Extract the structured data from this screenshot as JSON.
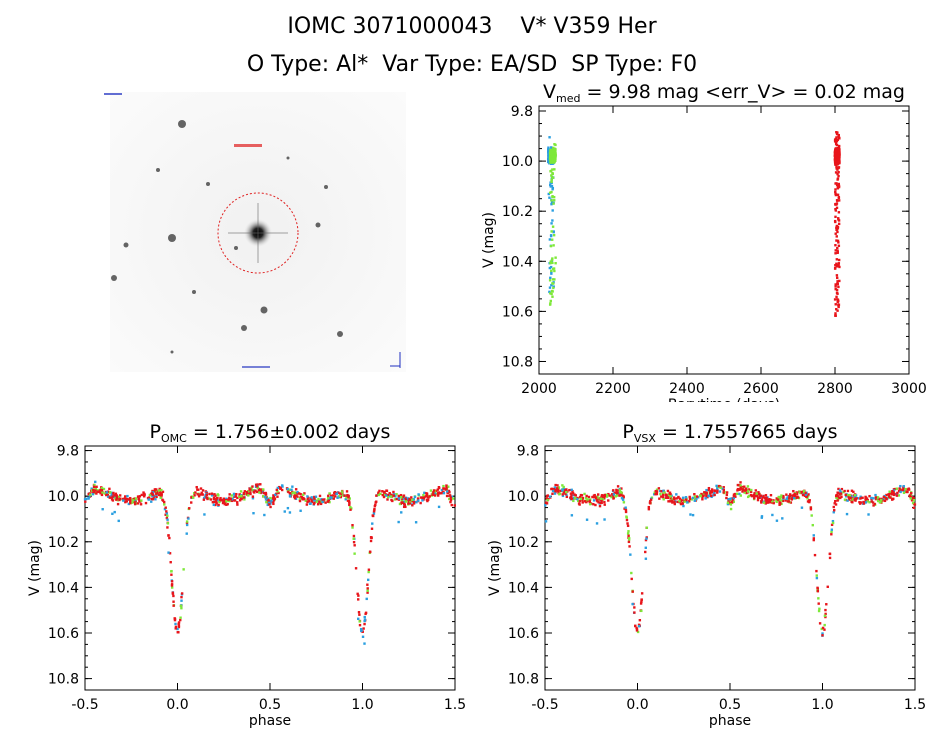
{
  "header": {
    "title": "IOMC 3071000043    V* V359 Her",
    "subtitle": "O Type: Al*  Var Type: EA/SD  SP Type: F0"
  },
  "colors": {
    "red": "#e8151b",
    "blue": "#2a9fe0",
    "green": "#7ee83a",
    "grid": "#000000"
  },
  "chart_data": [
    {
      "id": "image",
      "type": "other",
      "description_visible": "sky image with marked target circle"
    },
    {
      "id": "lightcurve",
      "type": "scatter",
      "title_parts": {
        "v": "V",
        "sub": "med",
        "rest": " = 9.98 mag <err_V> = 0.02 mag"
      },
      "xlabel": "Barytime (days)",
      "ylabel": "V (mag)",
      "xlim": [
        2000,
        3000
      ],
      "ylim": [
        10.85,
        9.78
      ],
      "xticks": [
        2000,
        2200,
        2400,
        2600,
        2800,
        3000
      ],
      "yticks": [
        9.8,
        10.0,
        10.2,
        10.4,
        10.6,
        10.8
      ],
      "series": [
        {
          "color": "blue",
          "x_range": [
            2025,
            2040
          ],
          "y_range": [
            9.9,
            10.55
          ]
        },
        {
          "color": "green",
          "x_range": [
            2030,
            2045
          ],
          "y_range": [
            9.93,
            10.58
          ]
        },
        {
          "color": "red",
          "x_range": [
            2800,
            2812
          ],
          "y_range": [
            9.88,
            10.62
          ]
        }
      ]
    },
    {
      "id": "phase_omc",
      "type": "scatter",
      "title_parts": {
        "v": "P",
        "sub": "OMC",
        "rest": " = 1.756±0.002 days"
      },
      "xlabel": "phase",
      "ylabel": "V (mag)",
      "xlim": [
        -0.5,
        1.5
      ],
      "ylim": [
        10.85,
        9.78
      ],
      "xticks": [
        -0.5,
        0.0,
        0.5,
        1.0,
        1.5
      ],
      "yticks": [
        9.8,
        10.0,
        10.2,
        10.4,
        10.6,
        10.8
      ],
      "curve": {
        "baseline": 9.98,
        "primary_depth": 10.62,
        "primary_phase": 0.0,
        "secondary_depth": 10.05,
        "secondary_phase": 0.5
      }
    },
    {
      "id": "phase_vsx",
      "type": "scatter",
      "title_parts": {
        "v": "P",
        "sub": "VSX",
        "rest": " = 1.7557665 days"
      },
      "xlabel": "phase",
      "ylabel": "V (mag)",
      "xlim": [
        -0.5,
        1.5
      ],
      "ylim": [
        10.85,
        9.78
      ],
      "xticks": [
        -0.5,
        0.0,
        0.5,
        1.0,
        1.5
      ],
      "yticks": [
        9.8,
        10.0,
        10.2,
        10.4,
        10.6,
        10.8
      ],
      "curve": {
        "baseline": 9.98,
        "primary_depth": 10.62,
        "primary_phase": 0.0,
        "secondary_depth": 10.05,
        "secondary_phase": 0.5
      }
    }
  ]
}
